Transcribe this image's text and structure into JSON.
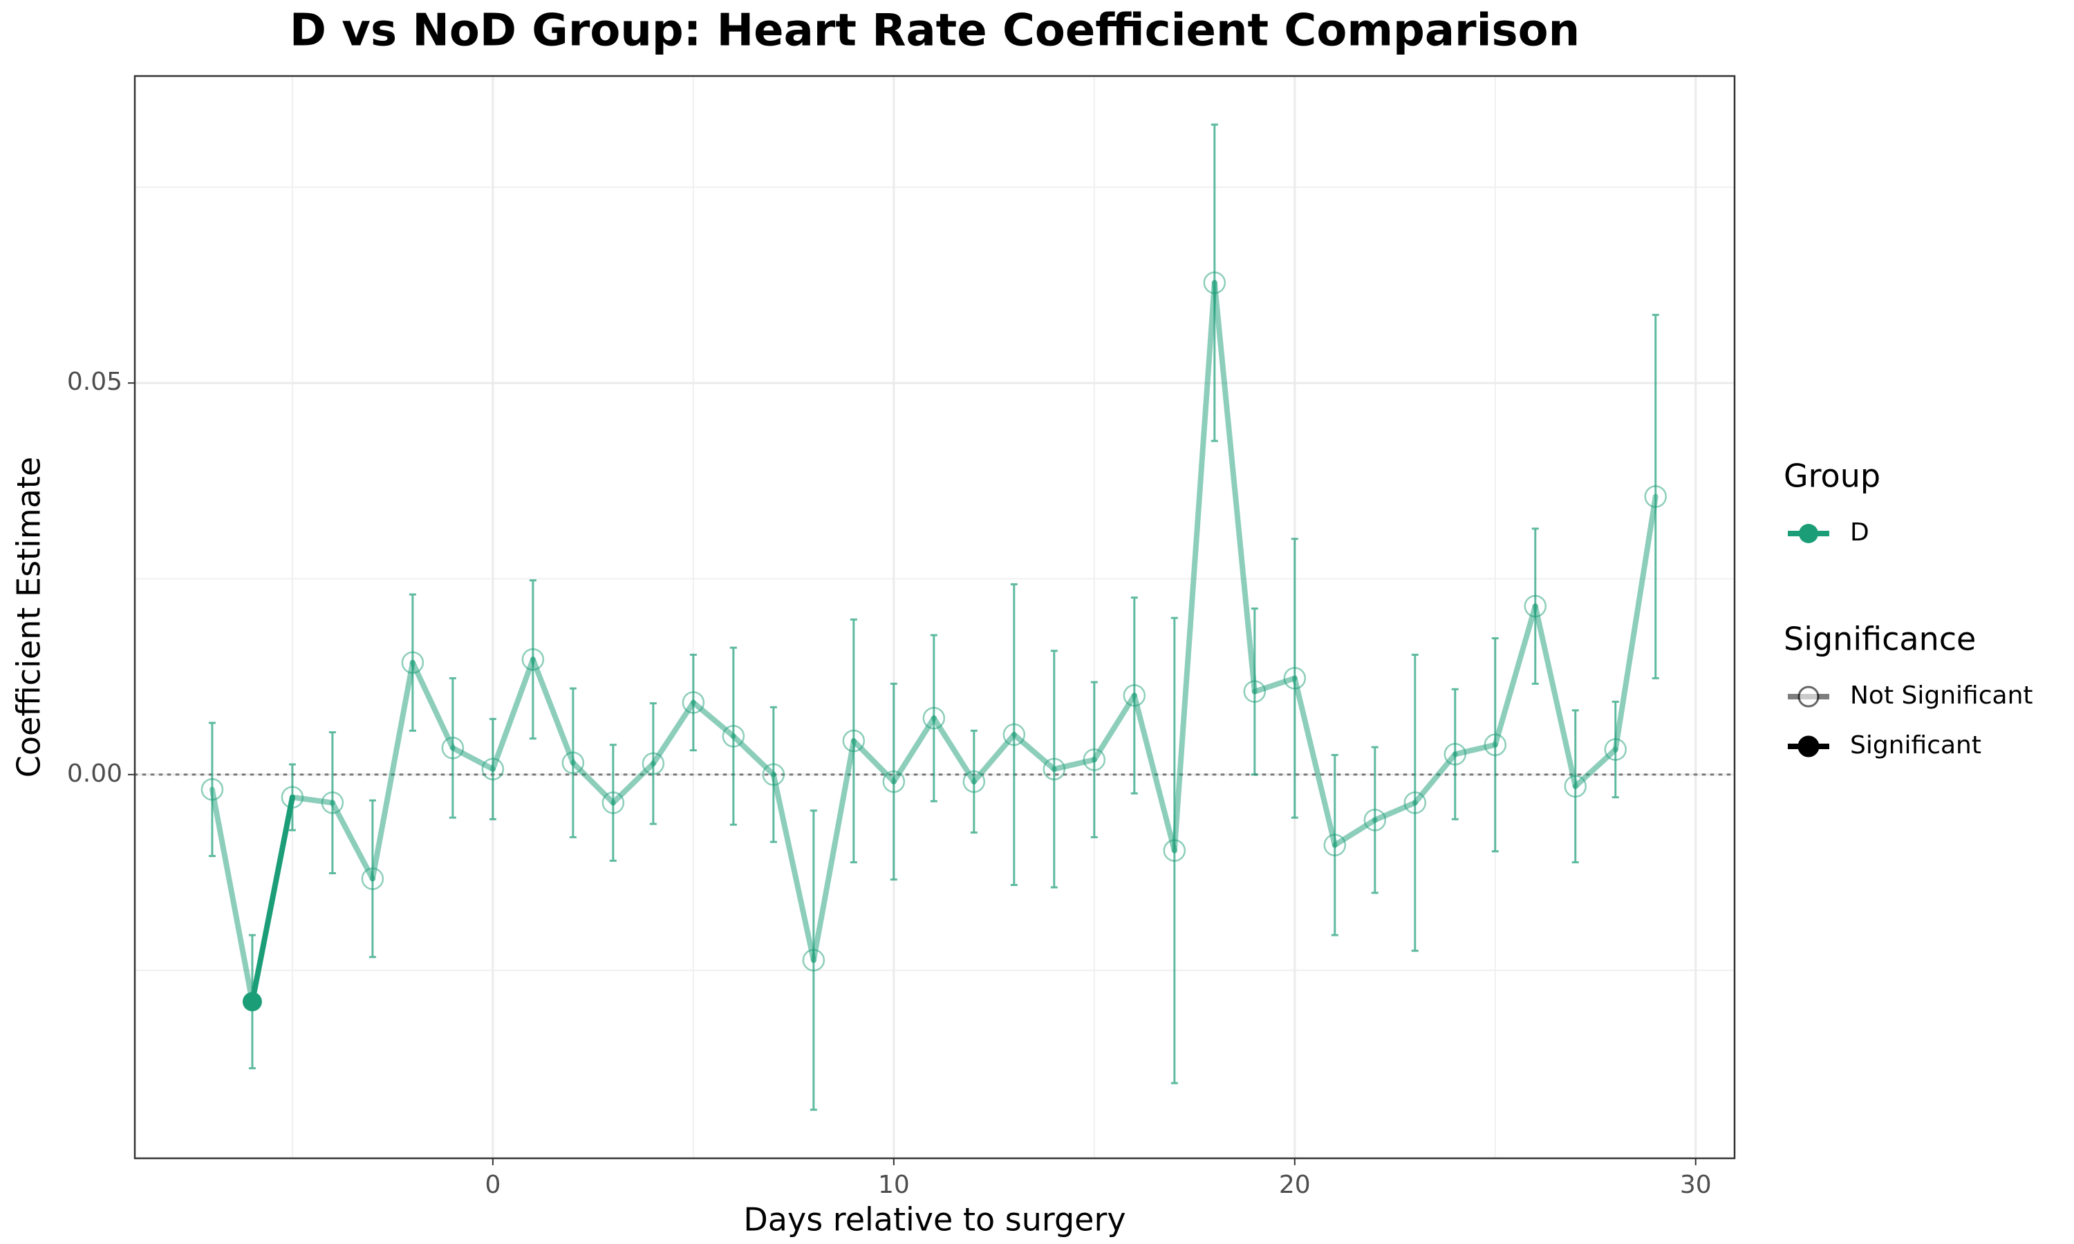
{
  "chart_data": {
    "type": "line",
    "title": "D vs NoD Group: Heart Rate Coefficient Comparison",
    "x_label": "Days relative to surgery",
    "y_label": "Coefficient Estimate",
    "x": [
      -7,
      -6,
      -5,
      -4,
      -3,
      -2,
      -1,
      0,
      1,
      2,
      3,
      4,
      5,
      6,
      7,
      8,
      9,
      10,
      11,
      12,
      13,
      14,
      15,
      16,
      17,
      18,
      19,
      20,
      21,
      22,
      23,
      24,
      25,
      26,
      27,
      28,
      29
    ],
    "series": [
      {
        "name": "D",
        "color": "#1b9e77",
        "values": [
          -0.0019,
          -0.029,
          -0.0029,
          -0.0036,
          -0.0133,
          0.0143,
          0.0034,
          0.0007,
          0.0147,
          0.0015,
          -0.0036,
          0.0014,
          0.0092,
          0.0049,
          0.0,
          -0.0237,
          0.0043,
          -0.0009,
          0.0072,
          -0.0009,
          0.0051,
          0.0007,
          0.0019,
          0.0101,
          -0.0097,
          0.0628,
          0.0106,
          0.0123,
          -0.009,
          -0.0058,
          -0.0036,
          0.0026,
          0.0038,
          0.0215,
          -0.0015,
          0.0032,
          0.0355
        ],
        "errors": [
          0.0085,
          0.0085,
          0.0042,
          0.009,
          0.01,
          0.0087,
          0.0089,
          0.0064,
          0.0101,
          0.0095,
          0.0074,
          0.0077,
          0.0061,
          0.0113,
          0.0086,
          0.0191,
          0.0155,
          0.0125,
          0.0106,
          0.0065,
          0.0192,
          0.0151,
          0.0099,
          0.0125,
          0.0297,
          0.0202,
          0.0106,
          0.0178,
          0.0115,
          0.0093,
          0.0189,
          0.0083,
          0.0136,
          0.0099,
          0.0097,
          0.0061,
          0.0232
        ],
        "significant": [
          false,
          true,
          false,
          false,
          false,
          false,
          false,
          false,
          false,
          false,
          false,
          false,
          false,
          false,
          false,
          false,
          false,
          false,
          false,
          false,
          false,
          false,
          false,
          false,
          false,
          false,
          false,
          false,
          false,
          false,
          false,
          false,
          false,
          false,
          false,
          false,
          false
        ]
      }
    ],
    "xlim": [
      -8.93,
      30.97
    ],
    "ylim": [
      -0.049,
      0.0892
    ],
    "xticks": [
      0,
      10,
      20,
      30
    ],
    "yticks": [
      {
        "value": 0,
        "label": "0.00"
      },
      {
        "value": 0.05,
        "label": "0.05"
      }
    ],
    "reference_line": 0,
    "grid": true,
    "legend": {
      "group_title": "Group",
      "significance_title": "Significance",
      "significance_labels": [
        "Not Significant",
        "Significant"
      ]
    }
  }
}
